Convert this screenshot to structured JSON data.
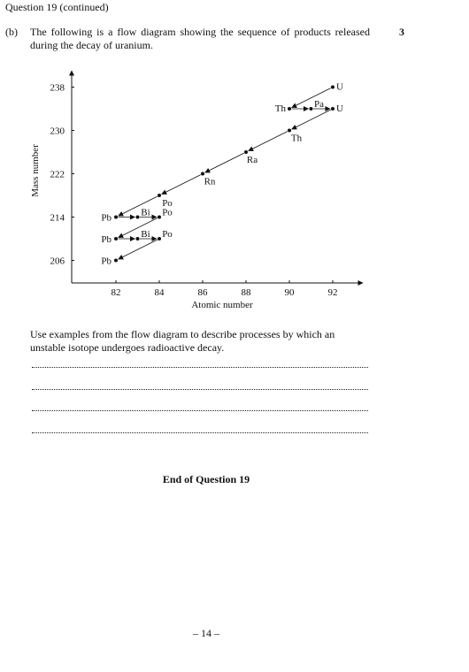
{
  "header": {
    "text": "Question 19 (continued)"
  },
  "part": {
    "label": "(b)",
    "intro": "The following is a flow diagram showing the sequence of products released during the decay of uranium.",
    "marks": "3"
  },
  "chart_data": {
    "type": "scatter",
    "xlabel": "Atomic number",
    "ylabel": "Mass number",
    "xticks": [
      "82",
      "84",
      "86",
      "88",
      "90",
      "92"
    ],
    "yticks": [
      "206",
      "214",
      "222",
      "230",
      "238"
    ],
    "xlim": [
      80,
      93
    ],
    "ylim": [
      203,
      240
    ],
    "grid": false,
    "points": [
      {
        "label": "U",
        "x": 92,
        "y": 238
      },
      {
        "label": "Th",
        "x": 90,
        "y": 234
      },
      {
        "label": "Pa",
        "x": 91,
        "y": 234
      },
      {
        "label": "U",
        "x": 92,
        "y": 234
      },
      {
        "label": "Th",
        "x": 90,
        "y": 230
      },
      {
        "label": "Ra",
        "x": 88,
        "y": 226
      },
      {
        "label": "Rn",
        "x": 86,
        "y": 222
      },
      {
        "label": "Po",
        "x": 84,
        "y": 218
      },
      {
        "label": "Pb",
        "x": 82,
        "y": 214
      },
      {
        "label": "Bi",
        "x": 83,
        "y": 214
      },
      {
        "label": "Po",
        "x": 84,
        "y": 214
      },
      {
        "label": "Pb",
        "x": 82,
        "y": 210
      },
      {
        "label": "Bi",
        "x": 83,
        "y": 210
      },
      {
        "label": "Po",
        "x": 84,
        "y": 210
      },
      {
        "label": "Pb",
        "x": 82,
        "y": 206
      }
    ],
    "arrows": [
      {
        "from": [
          92,
          238
        ],
        "to": [
          90,
          234
        ]
      },
      {
        "from": [
          90,
          234
        ],
        "to": [
          91,
          234
        ]
      },
      {
        "from": [
          91,
          234
        ],
        "to": [
          92,
          234
        ]
      },
      {
        "from": [
          92,
          234
        ],
        "to": [
          90,
          230
        ]
      },
      {
        "from": [
          90,
          230
        ],
        "to": [
          88,
          226
        ]
      },
      {
        "from": [
          88,
          226
        ],
        "to": [
          86,
          222
        ]
      },
      {
        "from": [
          86,
          222
        ],
        "to": [
          84,
          218
        ]
      },
      {
        "from": [
          84,
          218
        ],
        "to": [
          82,
          214
        ]
      },
      {
        "from": [
          82,
          214
        ],
        "to": [
          83,
          214
        ]
      },
      {
        "from": [
          83,
          214
        ],
        "to": [
          84,
          214
        ]
      },
      {
        "from": [
          84,
          214
        ],
        "to": [
          82,
          210
        ]
      },
      {
        "from": [
          82,
          210
        ],
        "to": [
          83,
          210
        ]
      },
      {
        "from": [
          83,
          210
        ],
        "to": [
          84,
          210
        ]
      },
      {
        "from": [
          84,
          210
        ],
        "to": [
          82,
          206
        ]
      }
    ]
  },
  "question": {
    "prompt": "Use examples from the flow diagram to describe processes by which an unstable isotope undergoes radioactive decay.",
    "answer_line_count": 4
  },
  "footer": {
    "end_text": "End of Question 19",
    "page_number": "– 14 –"
  }
}
